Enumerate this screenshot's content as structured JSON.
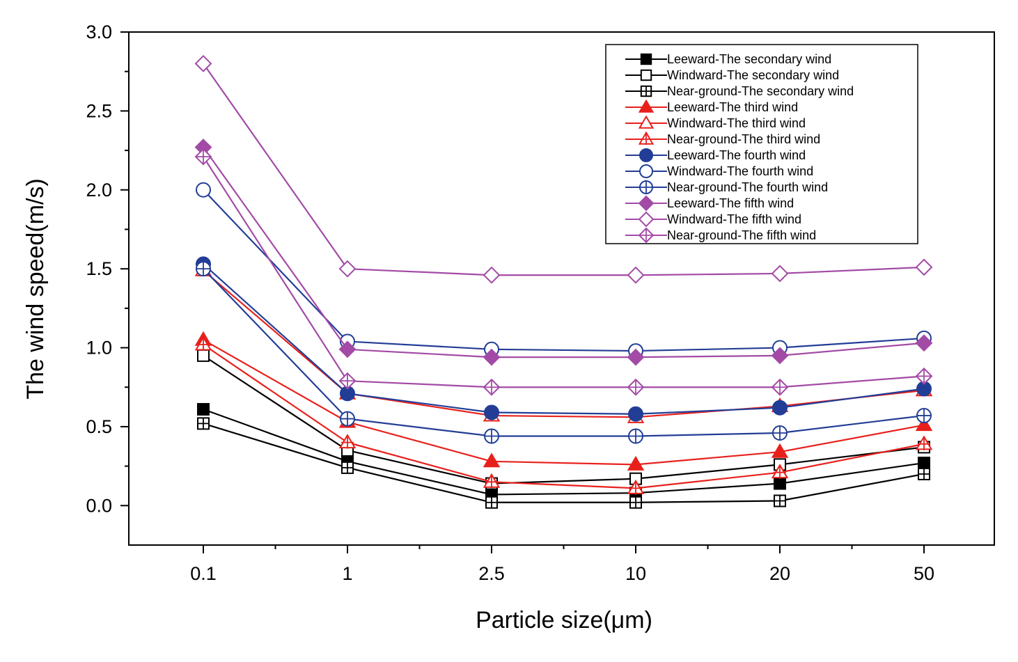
{
  "chart_data": {
    "type": "line",
    "xlabel": "Particle size(μm)",
    "ylabel": "The wind speed(m/s)",
    "categories": [
      "0.1",
      "1",
      "2.5",
      "10",
      "20",
      "50"
    ],
    "ylim": [
      -0.25,
      3.0
    ],
    "yticks": [
      0.0,
      0.5,
      1.0,
      1.5,
      2.0,
      2.5,
      3.0
    ],
    "ytick_labels": [
      "0.0",
      "0.5",
      "1.0",
      "1.5",
      "2.0",
      "2.5",
      "3.0"
    ],
    "legend_position": "top-right",
    "series": [
      {
        "name": "Leeward-The secondary wind",
        "color": "#000000",
        "marker": "square-filled",
        "values": [
          0.61,
          0.28,
          0.07,
          0.08,
          0.14,
          0.27
        ]
      },
      {
        "name": "Windward-The secondary wind",
        "color": "#000000",
        "marker": "square-open",
        "values": [
          0.95,
          0.35,
          0.14,
          0.17,
          0.26,
          0.37
        ]
      },
      {
        "name": "Near-ground-The secondary wind",
        "color": "#000000",
        "marker": "square-cross",
        "values": [
          0.52,
          0.24,
          0.02,
          0.02,
          0.03,
          0.2
        ]
      },
      {
        "name": "Leeward-The third wind",
        "color": "#e8201c",
        "marker": "triangle-filled",
        "values": [
          1.05,
          0.53,
          0.28,
          0.26,
          0.34,
          0.51
        ]
      },
      {
        "name": "Windward-The third wind",
        "color": "#e8201c",
        "marker": "triangle-open",
        "values": [
          1.49,
          0.71,
          0.57,
          0.56,
          0.63,
          0.73
        ]
      },
      {
        "name": "Near-ground-The third wind",
        "color": "#e8201c",
        "marker": "triangle-cross",
        "values": [
          1.02,
          0.4,
          0.15,
          0.11,
          0.21,
          0.39
        ]
      },
      {
        "name": "Leeward-The fourth wind",
        "color": "#223d96",
        "marker": "circle-filled",
        "values": [
          1.53,
          0.71,
          0.59,
          0.58,
          0.62,
          0.74
        ]
      },
      {
        "name": "Windward-The fourth wind",
        "color": "#223d96",
        "marker": "circle-open",
        "values": [
          2.0,
          1.04,
          0.99,
          0.98,
          1.0,
          1.06
        ]
      },
      {
        "name": "Near-ground-The fourth wind",
        "color": "#223d96",
        "marker": "circle-cross",
        "values": [
          1.5,
          0.55,
          0.44,
          0.44,
          0.46,
          0.57
        ]
      },
      {
        "name": "Leeward-The fifth wind",
        "color": "#a34aa6",
        "marker": "diamond-filled",
        "values": [
          2.27,
          0.99,
          0.94,
          0.94,
          0.95,
          1.03
        ]
      },
      {
        "name": "Windward-The fifth wind",
        "color": "#a34aa6",
        "marker": "diamond-open",
        "values": [
          2.8,
          1.5,
          1.46,
          1.46,
          1.47,
          1.51
        ]
      },
      {
        "name": "Near-ground-The fifth wind",
        "color": "#a34aa6",
        "marker": "diamond-cross",
        "values": [
          2.21,
          0.79,
          0.75,
          0.75,
          0.75,
          0.82
        ]
      }
    ]
  }
}
